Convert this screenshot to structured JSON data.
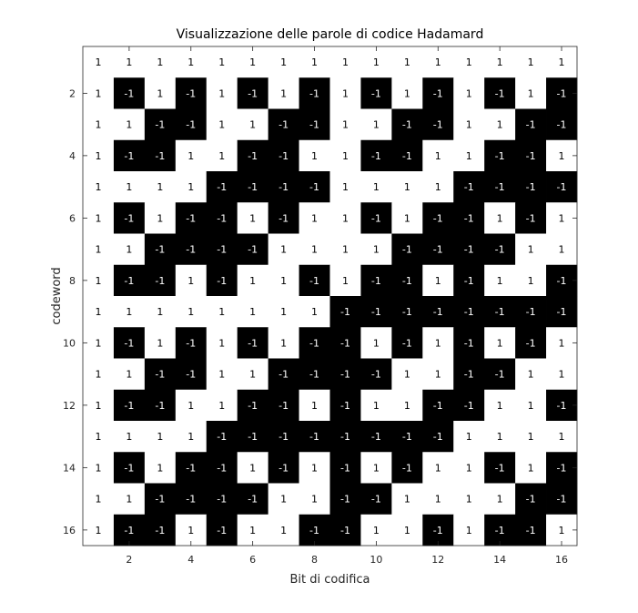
{
  "chart_data": {
    "type": "heatmap",
    "title": "Visualizzazione delle parole di codice Hadamard",
    "xlabel": "Bit di codifica",
    "ylabel": "codeword",
    "xlim": [
      0.5,
      16.5
    ],
    "ylim": [
      0.5,
      16.5
    ],
    "y_direction": "reverse",
    "x_ticks": [
      2,
      4,
      6,
      8,
      10,
      12,
      14,
      16
    ],
    "y_ticks": [
      2,
      4,
      6,
      8,
      10,
      12,
      14,
      16
    ],
    "colormap": {
      "1": "#ffffff",
      "-1": "#000000"
    },
    "label_colors": {
      "1": "#000000",
      "-1": "#ffffff"
    },
    "values": [
      [
        1,
        1,
        1,
        1,
        1,
        1,
        1,
        1,
        1,
        1,
        1,
        1,
        1,
        1,
        1,
        1
      ],
      [
        1,
        -1,
        1,
        -1,
        1,
        -1,
        1,
        -1,
        1,
        -1,
        1,
        -1,
        1,
        -1,
        1,
        -1
      ],
      [
        1,
        1,
        -1,
        -1,
        1,
        1,
        -1,
        -1,
        1,
        1,
        -1,
        -1,
        1,
        1,
        -1,
        -1
      ],
      [
        1,
        -1,
        -1,
        1,
        1,
        -1,
        -1,
        1,
        1,
        -1,
        -1,
        1,
        1,
        -1,
        -1,
        1
      ],
      [
        1,
        1,
        1,
        1,
        -1,
        -1,
        -1,
        -1,
        1,
        1,
        1,
        1,
        -1,
        -1,
        -1,
        -1
      ],
      [
        1,
        -1,
        1,
        -1,
        -1,
        1,
        -1,
        1,
        1,
        -1,
        1,
        -1,
        -1,
        1,
        -1,
        1
      ],
      [
        1,
        1,
        -1,
        -1,
        -1,
        -1,
        1,
        1,
        1,
        1,
        -1,
        -1,
        -1,
        -1,
        1,
        1
      ],
      [
        1,
        -1,
        -1,
        1,
        -1,
        1,
        1,
        -1,
        1,
        -1,
        -1,
        1,
        -1,
        1,
        1,
        -1
      ],
      [
        1,
        1,
        1,
        1,
        1,
        1,
        1,
        1,
        -1,
        -1,
        -1,
        -1,
        -1,
        -1,
        -1,
        -1
      ],
      [
        1,
        -1,
        1,
        -1,
        1,
        -1,
        1,
        -1,
        -1,
        1,
        -1,
        1,
        -1,
        1,
        -1,
        1
      ],
      [
        1,
        1,
        -1,
        -1,
        1,
        1,
        -1,
        -1,
        -1,
        -1,
        1,
        1,
        -1,
        -1,
        1,
        1
      ],
      [
        1,
        -1,
        -1,
        1,
        1,
        -1,
        -1,
        1,
        -1,
        1,
        1,
        -1,
        -1,
        1,
        1,
        -1
      ],
      [
        1,
        1,
        1,
        1,
        -1,
        -1,
        -1,
        -1,
        -1,
        -1,
        -1,
        -1,
        1,
        1,
        1,
        1
      ],
      [
        1,
        -1,
        1,
        -1,
        -1,
        1,
        -1,
        1,
        -1,
        1,
        -1,
        1,
        1,
        -1,
        1,
        -1
      ],
      [
        1,
        1,
        -1,
        -1,
        -1,
        -1,
        1,
        1,
        -1,
        -1,
        1,
        1,
        1,
        1,
        -1,
        -1
      ],
      [
        1,
        -1,
        -1,
        1,
        -1,
        1,
        1,
        -1,
        -1,
        1,
        1,
        -1,
        1,
        -1,
        -1,
        1
      ]
    ]
  }
}
